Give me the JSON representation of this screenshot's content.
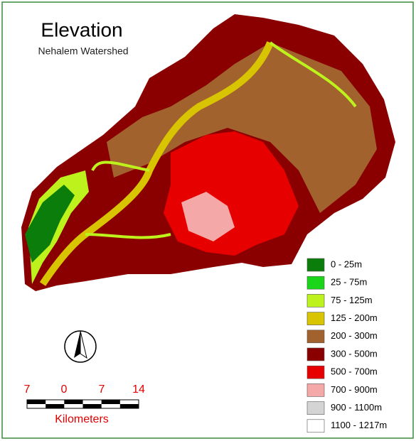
{
  "header": {
    "title": "Elevation",
    "subtitle": "Nehalem Watershed"
  },
  "legend": {
    "items": [
      {
        "label": "0 - 25m",
        "color": "#0b7d0b"
      },
      {
        "label": "25 - 75m",
        "color": "#1ad61a"
      },
      {
        "label": "75 - 125m",
        "color": "#bdf21c"
      },
      {
        "label": "125 - 200m",
        "color": "#d8c400"
      },
      {
        "label": "200 - 300m",
        "color": "#a1622e"
      },
      {
        "label": "300 - 500m",
        "color": "#8a0000"
      },
      {
        "label": "500 - 700m",
        "color": "#e60000"
      },
      {
        "label": "700 - 900m",
        "color": "#f5a8a8"
      },
      {
        "label": "900 - 1100m",
        "color": "#d4d4d4"
      },
      {
        "label": "1100 - 1217m",
        "color": "#ffffff"
      }
    ]
  },
  "scale_bar": {
    "labels": [
      "7",
      "0",
      "7",
      "14"
    ],
    "unit": "Kilometers"
  }
}
